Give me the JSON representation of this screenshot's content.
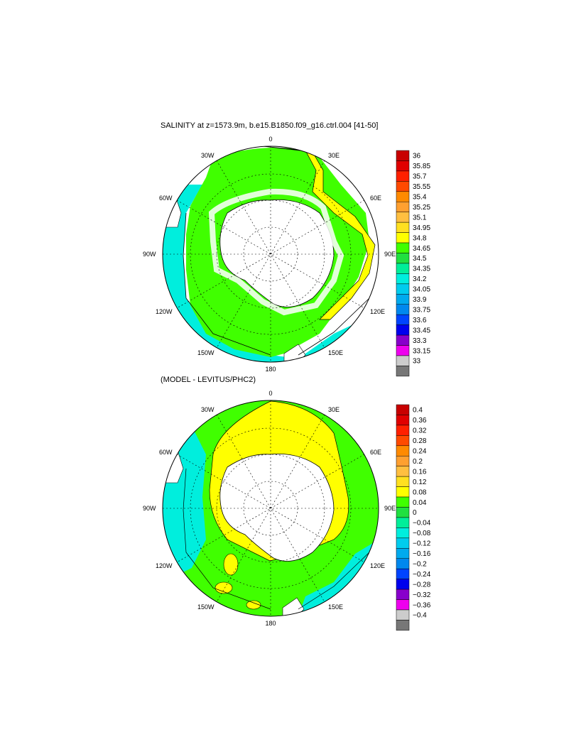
{
  "panels": [
    {
      "title": "SALINITY at z=1573.9m, b.e15.B1850.f09_g16.ctrl.004 [41-50]",
      "colorbar_labels": [
        "36",
        "35.85",
        "35.7",
        "35.55",
        "35.4",
        "35.25",
        "35.1",
        "34.95",
        "34.8",
        "34.65",
        "34.5",
        "34.35",
        "34.2",
        "34.05",
        "33.9",
        "33.75",
        "33.6",
        "33.45",
        "33.3",
        "33.15",
        "33"
      ]
    },
    {
      "title": "(MODEL - LEVITUS/PHC2)",
      "colorbar_labels": [
        "0.4",
        "0.36",
        "0.32",
        "0.28",
        "0.24",
        "0.2",
        "0.16",
        "0.12",
        "0.08",
        "0.04",
        "0",
        "−0.04",
        "−0.08",
        "−0.12",
        "−0.16",
        "−0.2",
        "−0.24",
        "−0.28",
        "−0.32",
        "−0.36",
        "−0.4"
      ]
    }
  ],
  "lon_labels": {
    "top": "0",
    "bottom": "180",
    "left": "90W",
    "right": "90E",
    "nw1": "30W",
    "nw2": "60W",
    "ne1": "30E",
    "ne2": "60E",
    "sw1": "120W",
    "sw2": "150W",
    "se1": "120E",
    "se2": "150E"
  },
  "colorbar_colors": [
    "#c80000",
    "#e00000",
    "#ff2000",
    "#ff4a00",
    "#ff8a00",
    "#ffa030",
    "#ffbf40",
    "#ffe020",
    "#ffff00",
    "#40ff00",
    "#20e040",
    "#00ee99",
    "#00eedd",
    "#00ccee",
    "#00aaee",
    "#0088ee",
    "#0044ff",
    "#0000ee",
    "#8800cc",
    "#ee00ee",
    "#cccccc",
    "#777777"
  ]
}
